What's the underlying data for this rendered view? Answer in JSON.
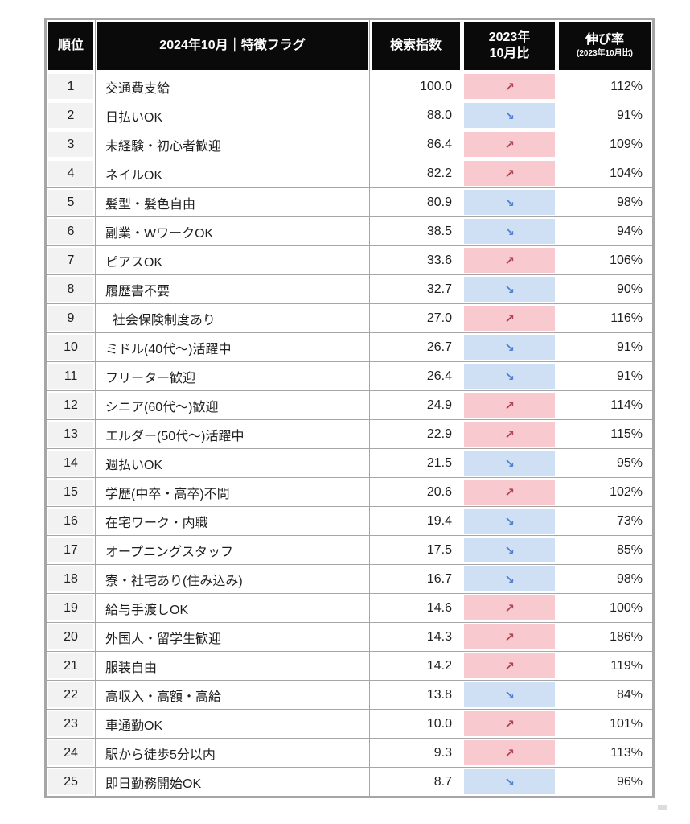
{
  "header": {
    "rank": "順位",
    "feature": "2024年10月｜特徴フラグ",
    "index": "検索指数",
    "yoy_line1": "2023年",
    "yoy_line2": "10月比",
    "growth": "伸び率",
    "growth_sub": "(2023年10月比)"
  },
  "icons": {
    "up": "↗",
    "down": "↘"
  },
  "colors": {
    "header_bg": "#0a0a0a",
    "header_text": "#ffffff",
    "grid": "#a6a6a6",
    "rank_bg": "#f2f2f2",
    "text": "#1f1f1f",
    "up_bg": "#f8c9cf",
    "up_arrow": "#b2434e",
    "down_bg": "#cfe0f5",
    "down_arrow": "#4e7fd0"
  },
  "chart_data": {
    "type": "table",
    "title": "2024年10月 特徴フラグ 検索指数ランキング",
    "columns": [
      "順位",
      "2024年10月｜特徴フラグ",
      "検索指数",
      "2023年10月比",
      "伸び率(2023年10月比)"
    ],
    "rows": [
      {
        "rank": "1",
        "feature": "交通費支給",
        "index": "100.0",
        "trend": "up",
        "growth": "112%"
      },
      {
        "rank": "2",
        "feature": "日払いOK",
        "index": "88.0",
        "trend": "down",
        "growth": "91%"
      },
      {
        "rank": "3",
        "feature": "未経験・初心者歓迎",
        "index": "86.4",
        "trend": "up",
        "growth": "109%"
      },
      {
        "rank": "4",
        "feature": "ネイルOK",
        "index": "82.2",
        "trend": "up",
        "growth": "104%"
      },
      {
        "rank": "5",
        "feature": "髪型・髪色自由",
        "index": "80.9",
        "trend": "down",
        "growth": "98%"
      },
      {
        "rank": "6",
        "feature": "副業・WワークOK",
        "index": "38.5",
        "trend": "down",
        "growth": "94%"
      },
      {
        "rank": "7",
        "feature": "ピアスOK",
        "index": "33.6",
        "trend": "up",
        "growth": "106%"
      },
      {
        "rank": "8",
        "feature": "履歴書不要",
        "index": "32.7",
        "trend": "down",
        "growth": "90%"
      },
      {
        "rank": "9",
        "feature": "  社会保険制度あり",
        "index": "27.0",
        "trend": "up",
        "growth": "116%"
      },
      {
        "rank": "10",
        "feature": "ミドル(40代～)活躍中",
        "index": "26.7",
        "trend": "down",
        "growth": "91%"
      },
      {
        "rank": "11",
        "feature": "フリーター歓迎",
        "index": "26.4",
        "trend": "down",
        "growth": "91%"
      },
      {
        "rank": "12",
        "feature": "シニア(60代～)歓迎",
        "index": "24.9",
        "trend": "up",
        "growth": "114%"
      },
      {
        "rank": "13",
        "feature": "エルダー(50代～)活躍中",
        "index": "22.9",
        "trend": "up",
        "growth": "115%"
      },
      {
        "rank": "14",
        "feature": "週払いOK",
        "index": "21.5",
        "trend": "down",
        "growth": "95%"
      },
      {
        "rank": "15",
        "feature": "学歴(中卒・高卒)不問",
        "index": "20.6",
        "trend": "up",
        "growth": "102%"
      },
      {
        "rank": "16",
        "feature": "在宅ワーク・内職",
        "index": "19.4",
        "trend": "down",
        "growth": "73%"
      },
      {
        "rank": "17",
        "feature": "オープニングスタッフ",
        "index": "17.5",
        "trend": "down",
        "growth": "85%"
      },
      {
        "rank": "18",
        "feature": "寮・社宅あり(住み込み)",
        "index": "16.7",
        "trend": "down",
        "growth": "98%"
      },
      {
        "rank": "19",
        "feature": "給与手渡しOK",
        "index": "14.6",
        "trend": "up",
        "growth": "100%"
      },
      {
        "rank": "20",
        "feature": "外国人・留学生歓迎",
        "index": "14.3",
        "trend": "up",
        "growth": "186%"
      },
      {
        "rank": "21",
        "feature": "服装自由",
        "index": "14.2",
        "trend": "up",
        "growth": "119%"
      },
      {
        "rank": "22",
        "feature": "高収入・高額・高給",
        "index": "13.8",
        "trend": "down",
        "growth": "84%"
      },
      {
        "rank": "23",
        "feature": "車通勤OK",
        "index": "10.0",
        "trend": "up",
        "growth": "101%"
      },
      {
        "rank": "24",
        "feature": "駅から徒歩5分以内",
        "index": "9.3",
        "trend": "up",
        "growth": "113%"
      },
      {
        "rank": "25",
        "feature": "即日勤務開始OK",
        "index": "8.7",
        "trend": "down",
        "growth": "96%"
      }
    ]
  }
}
